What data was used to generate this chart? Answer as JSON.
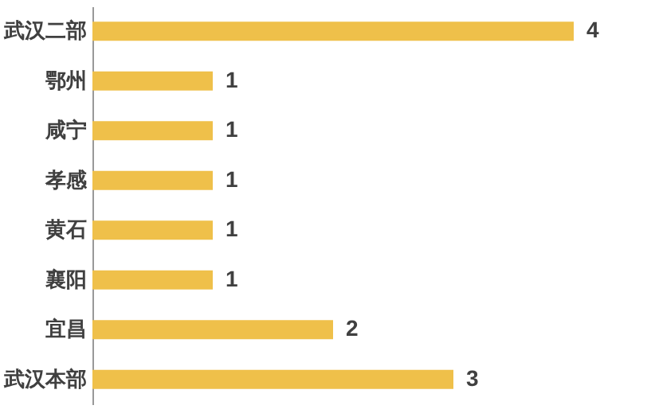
{
  "chart_data": {
    "type": "bar",
    "orientation": "horizontal",
    "categories": [
      "武汉二部",
      "鄂州",
      "咸宁",
      "孝感",
      "黄石",
      "襄阳",
      "宜昌",
      "武汉本部"
    ],
    "values": [
      4,
      1,
      1,
      1,
      1,
      1,
      2,
      3
    ],
    "color": "#efc04a",
    "data_labels": true,
    "grid": false
  }
}
